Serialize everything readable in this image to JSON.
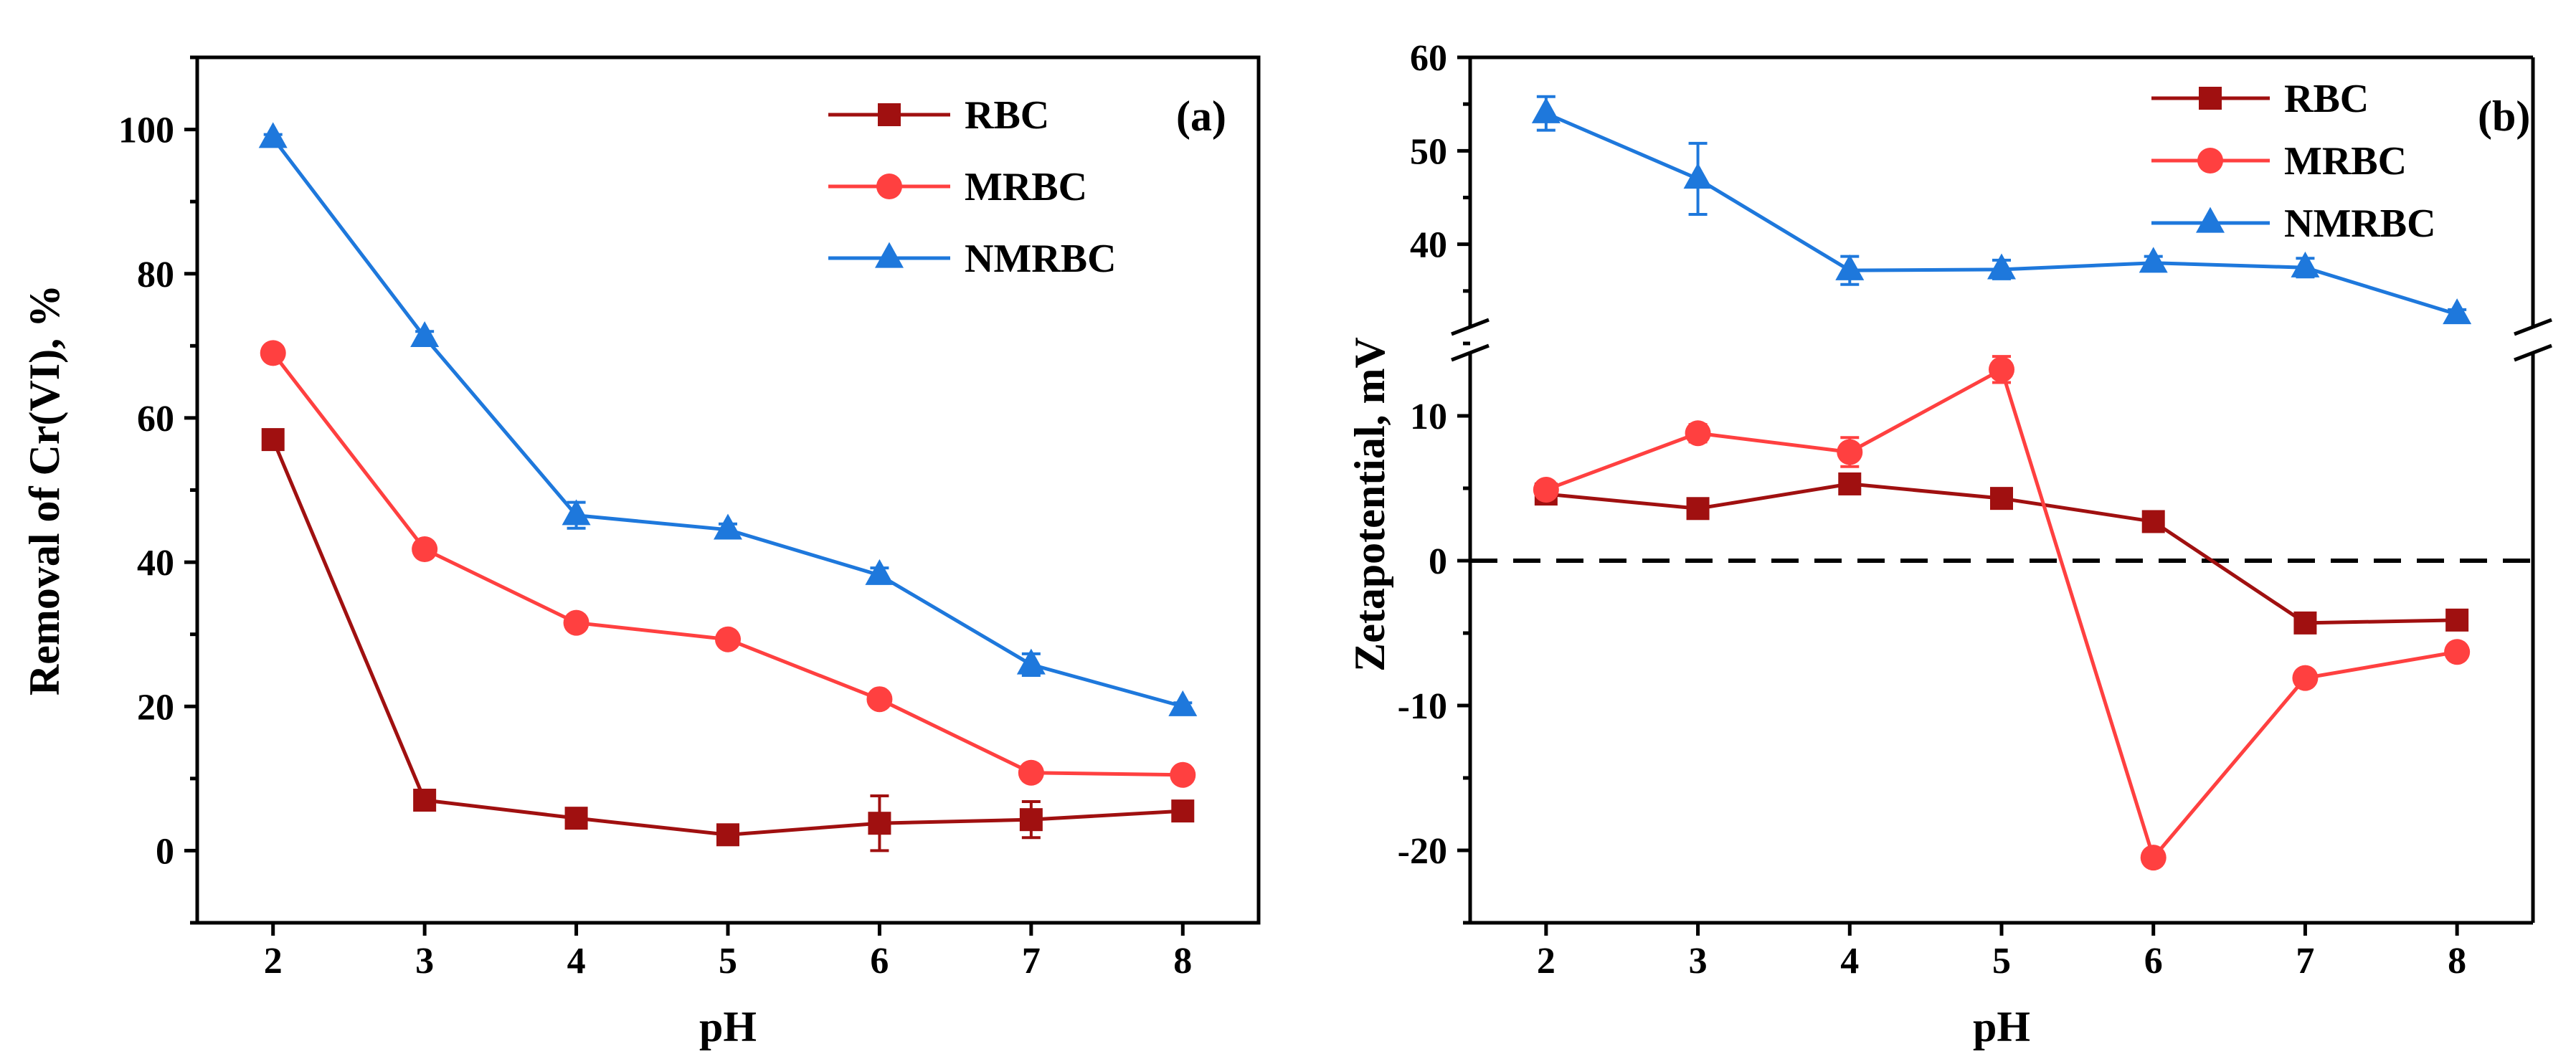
{
  "colors": {
    "RBC": "#a01010",
    "MRBC": "#ff4040",
    "NMRBC": "#1e78dc"
  },
  "chart_data": [
    {
      "type": "line",
      "panel": "(a)",
      "xlabel": "pH",
      "ylabel": "Removal of Cr(VI), %",
      "xlim": [
        1.5,
        8.5
      ],
      "ylim": [
        -10,
        110
      ],
      "xticks": [
        2,
        3,
        4,
        5,
        6,
        7,
        8
      ],
      "yticks": [
        0,
        20,
        40,
        60,
        80,
        100
      ],
      "legend_position": "top-right",
      "x": [
        2,
        3,
        4,
        5,
        6,
        7,
        8
      ],
      "series": [
        {
          "name": "RBC",
          "marker": "square",
          "values": [
            57,
            7,
            4.5,
            2.2,
            3.8,
            4.3,
            5.5
          ],
          "errors": [
            0.8,
            0.6,
            0.5,
            0.5,
            3.8,
            2.5,
            1.2
          ]
        },
        {
          "name": "MRBC",
          "marker": "circle",
          "values": [
            69,
            41.8,
            31.6,
            29.3,
            21,
            10.8,
            10.5
          ],
          "errors": [
            0.6,
            0.6,
            0.6,
            0.6,
            0.8,
            0.6,
            0.5
          ]
        },
        {
          "name": "NMRBC",
          "marker": "triangle",
          "values": [
            98.8,
            71.2,
            46.5,
            44.5,
            38.2,
            25.8,
            20
          ],
          "errors": [
            0.5,
            0.8,
            1.8,
            0.8,
            1.0,
            1.5,
            0.5
          ]
        }
      ]
    },
    {
      "type": "line",
      "panel": "(b)",
      "xlabel": "pH",
      "ylabel": "Zetapotential, mV",
      "xlim": [
        1.5,
        8.5
      ],
      "ylim_lower": [
        -25,
        15
      ],
      "ylim_upper": [
        30,
        60
      ],
      "axis_break": "between 15 and 30",
      "xticks": [
        2,
        3,
        4,
        5,
        6,
        7,
        8
      ],
      "yticks_lower": [
        -20,
        -10,
        0,
        10
      ],
      "yticks_upper": [
        40,
        50,
        60
      ],
      "reference_line": "dashed line at y = 0",
      "legend_position": "top-right",
      "x": [
        2,
        3,
        4,
        5,
        6,
        7,
        8
      ],
      "series": [
        {
          "name": "RBC",
          "marker": "square",
          "values": [
            4.6,
            3.6,
            5.3,
            4.3,
            2.7,
            -4.3,
            -4.1
          ],
          "errors": [
            0.4,
            0.4,
            0.4,
            0.4,
            0.3,
            0.4,
            0.4
          ]
        },
        {
          "name": "MRBC",
          "marker": "circle",
          "values": [
            4.9,
            8.8,
            7.5,
            13.2,
            -20.5,
            -8.1,
            -6.3
          ],
          "errors": [
            0.4,
            0.6,
            1.0,
            0.9,
            0.5,
            0.5,
            0.5
          ]
        },
        {
          "name": "NMRBC",
          "marker": "triangle",
          "values": [
            54,
            47,
            37.2,
            37.3,
            38,
            37.5,
            32.5
          ],
          "errors": [
            1.8,
            3.8,
            1.5,
            1.0,
            0.7,
            1.0,
            0.5
          ]
        }
      ]
    }
  ]
}
